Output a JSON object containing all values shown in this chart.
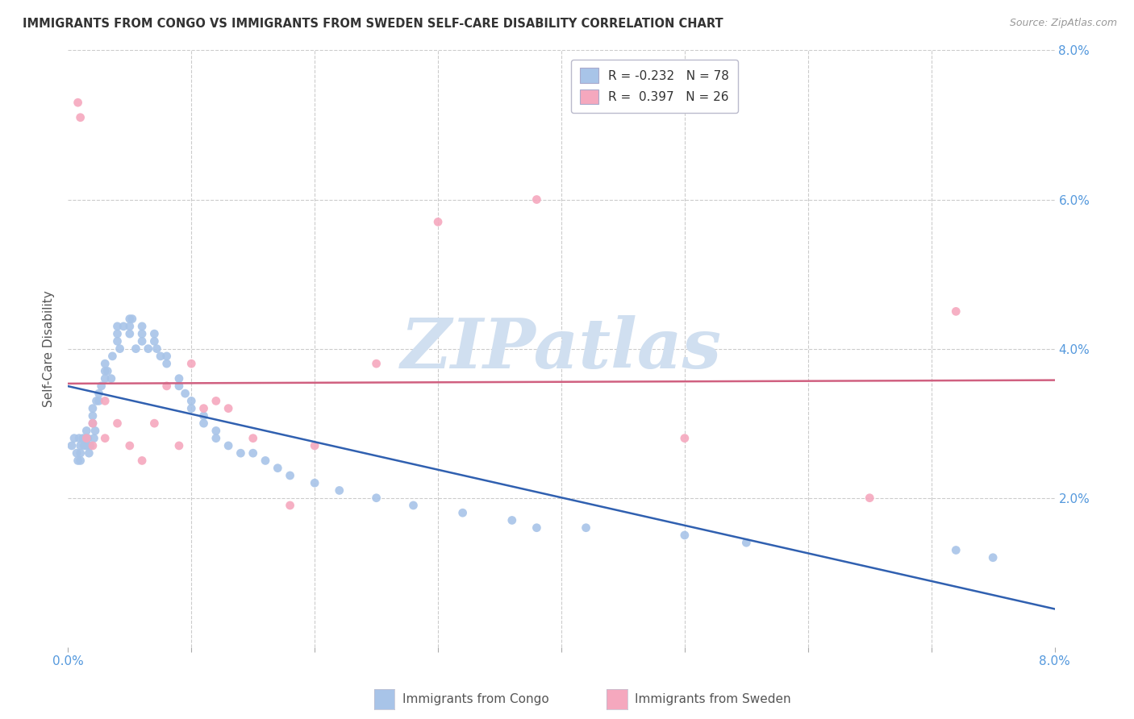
{
  "title": "IMMIGRANTS FROM CONGO VS IMMIGRANTS FROM SWEDEN SELF-CARE DISABILITY CORRELATION CHART",
  "source": "Source: ZipAtlas.com",
  "ylabel": "Self-Care Disability",
  "xlim": [
    0.0,
    0.08
  ],
  "ylim": [
    0.0,
    0.08
  ],
  "congo_R": -0.232,
  "congo_N": 78,
  "sweden_R": 0.397,
  "sweden_N": 26,
  "congo_color": "#a8c4e8",
  "sweden_color": "#f5a8be",
  "congo_line_color": "#3060b0",
  "sweden_line_color": "#d06080",
  "watermark_text": "ZIPatlas",
  "watermark_color": "#d0dff0",
  "congo_x": [
    0.0003,
    0.0005,
    0.0007,
    0.0008,
    0.0009,
    0.001,
    0.001,
    0.001,
    0.0012,
    0.0013,
    0.0014,
    0.0015,
    0.0015,
    0.0016,
    0.0017,
    0.0018,
    0.002,
    0.002,
    0.002,
    0.0021,
    0.0022,
    0.0023,
    0.0025,
    0.0025,
    0.0027,
    0.003,
    0.003,
    0.003,
    0.0032,
    0.0035,
    0.0036,
    0.004,
    0.004,
    0.004,
    0.0042,
    0.0045,
    0.005,
    0.005,
    0.005,
    0.0052,
    0.0055,
    0.006,
    0.006,
    0.006,
    0.0065,
    0.007,
    0.007,
    0.0072,
    0.0075,
    0.008,
    0.008,
    0.009,
    0.009,
    0.0095,
    0.01,
    0.01,
    0.011,
    0.011,
    0.012,
    0.012,
    0.013,
    0.014,
    0.015,
    0.016,
    0.017,
    0.018,
    0.02,
    0.022,
    0.025,
    0.028,
    0.032,
    0.036,
    0.038,
    0.042,
    0.05,
    0.055,
    0.072,
    0.075
  ],
  "congo_y": [
    0.027,
    0.028,
    0.026,
    0.025,
    0.028,
    0.027,
    0.026,
    0.025,
    0.028,
    0.027,
    0.028,
    0.029,
    0.027,
    0.028,
    0.026,
    0.027,
    0.032,
    0.03,
    0.031,
    0.028,
    0.029,
    0.033,
    0.034,
    0.033,
    0.035,
    0.038,
    0.037,
    0.036,
    0.037,
    0.036,
    0.039,
    0.042,
    0.043,
    0.041,
    0.04,
    0.043,
    0.044,
    0.043,
    0.042,
    0.044,
    0.04,
    0.043,
    0.042,
    0.041,
    0.04,
    0.042,
    0.041,
    0.04,
    0.039,
    0.038,
    0.039,
    0.036,
    0.035,
    0.034,
    0.033,
    0.032,
    0.031,
    0.03,
    0.029,
    0.028,
    0.027,
    0.026,
    0.026,
    0.025,
    0.024,
    0.023,
    0.022,
    0.021,
    0.02,
    0.019,
    0.018,
    0.017,
    0.016,
    0.016,
    0.015,
    0.014,
    0.013,
    0.012
  ],
  "sweden_x": [
    0.0008,
    0.001,
    0.0015,
    0.002,
    0.002,
    0.003,
    0.003,
    0.004,
    0.005,
    0.006,
    0.007,
    0.008,
    0.009,
    0.01,
    0.011,
    0.012,
    0.013,
    0.015,
    0.018,
    0.02,
    0.025,
    0.03,
    0.038,
    0.05,
    0.065,
    0.072
  ],
  "sweden_y": [
    0.073,
    0.071,
    0.028,
    0.027,
    0.03,
    0.033,
    0.028,
    0.03,
    0.027,
    0.025,
    0.03,
    0.035,
    0.027,
    0.038,
    0.032,
    0.033,
    0.032,
    0.028,
    0.019,
    0.027,
    0.038,
    0.057,
    0.06,
    0.028,
    0.02,
    0.045
  ]
}
